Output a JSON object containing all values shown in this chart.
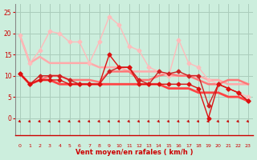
{
  "bg_color": "#cceedd",
  "grid_color": "#aaccbb",
  "x_label": "Vent moyen/en rafales ( km/h )",
  "x_ticks": [
    0,
    1,
    2,
    3,
    4,
    5,
    6,
    7,
    8,
    9,
    10,
    11,
    12,
    13,
    14,
    15,
    16,
    17,
    18,
    19,
    20,
    21,
    22,
    23
  ],
  "y_ticks": [
    0,
    5,
    10,
    15,
    20,
    25
  ],
  "ylim": [
    -4,
    27
  ],
  "xlim": [
    -0.5,
    23.5
  ],
  "lines": [
    {
      "x": [
        0,
        1,
        2,
        3,
        4,
        5,
        6,
        7,
        8,
        9,
        10,
        11,
        12,
        13,
        14,
        15,
        16,
        17,
        18,
        19,
        20,
        21,
        22,
        23
      ],
      "y": [
        19.5,
        13,
        14.5,
        13,
        13,
        13,
        13,
        13,
        12,
        12,
        12,
        11,
        11,
        11,
        11,
        10,
        10,
        10,
        10,
        9,
        9,
        8,
        8,
        8
      ],
      "color": "#ffaaaa",
      "lw": 1.8,
      "marker": null
    },
    {
      "x": [
        0,
        1,
        2,
        3,
        4,
        5,
        6,
        7,
        8,
        9,
        10,
        11,
        12,
        13,
        14,
        15,
        16,
        17,
        18,
        19,
        20,
        21,
        22,
        23
      ],
      "y": [
        19.5,
        13,
        16,
        20.5,
        20,
        18,
        18,
        13,
        18,
        24,
        22,
        17,
        16,
        12,
        11,
        10,
        18.5,
        13,
        12,
        9,
        8,
        7,
        6,
        5
      ],
      "color": "#ffbbbb",
      "lw": 1.0,
      "marker": "D",
      "ms": 2.5
    },
    {
      "x": [
        0,
        1,
        2,
        3,
        4,
        5,
        6,
        7,
        8,
        9,
        10,
        11,
        12,
        13,
        14,
        15,
        16,
        17,
        18,
        19,
        20,
        21,
        22,
        23
      ],
      "y": [
        10.5,
        8,
        9,
        10,
        10,
        9,
        9,
        9,
        8.5,
        11,
        11,
        11,
        9,
        9,
        10,
        10.5,
        10,
        10,
        9,
        8,
        8,
        9,
        9,
        8
      ],
      "color": "#ff7777",
      "lw": 1.8,
      "marker": null
    },
    {
      "x": [
        0,
        1,
        2,
        3,
        4,
        5,
        6,
        7,
        8,
        9,
        10,
        11,
        12,
        13,
        14,
        15,
        16,
        17,
        18,
        19,
        20,
        21,
        22,
        23
      ],
      "y": [
        10.5,
        8,
        10,
        10,
        10,
        9,
        8,
        8,
        8,
        11,
        12,
        12,
        9,
        8,
        11,
        10.5,
        11,
        10,
        10,
        3,
        8,
        7,
        6,
        4
      ],
      "color": "#cc2222",
      "lw": 1.0,
      "marker": "D",
      "ms": 2.5
    },
    {
      "x": [
        0,
        1,
        2,
        3,
        4,
        5,
        6,
        7,
        8,
        9,
        10,
        11,
        12,
        13,
        14,
        15,
        16,
        17,
        18,
        19,
        20,
        21,
        22,
        23
      ],
      "y": [
        10.5,
        8,
        9,
        9,
        8,
        8,
        8,
        8,
        8,
        8,
        8,
        8,
        8,
        8,
        8,
        7,
        7,
        7,
        6,
        6,
        6,
        5,
        5,
        4
      ],
      "color": "#ff4444",
      "lw": 2.0,
      "marker": null
    },
    {
      "x": [
        0,
        1,
        2,
        3,
        4,
        5,
        6,
        7,
        8,
        9,
        10,
        11,
        12,
        13,
        14,
        15,
        16,
        17,
        18,
        19,
        20,
        21,
        22,
        23
      ],
      "y": [
        10.5,
        8,
        9,
        9,
        9,
        8,
        8,
        8,
        8,
        15,
        12,
        12,
        8,
        8,
        8,
        8,
        8,
        8,
        7,
        0,
        8,
        7,
        6,
        4
      ],
      "color": "#dd1111",
      "lw": 1.0,
      "marker": "D",
      "ms": 2.5
    }
  ],
  "arrow_color": "#cc0000",
  "tick_color": "#cc0000",
  "label_color": "#cc0000",
  "spine_color": "#888888"
}
